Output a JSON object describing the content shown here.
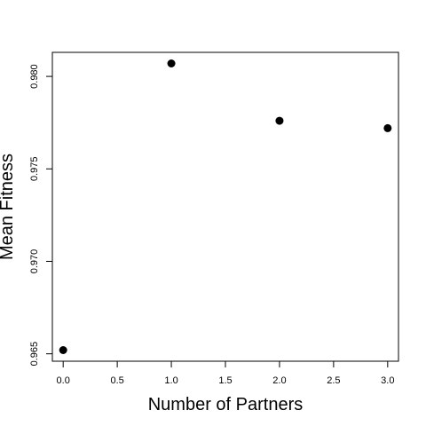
{
  "chart_data": {
    "type": "scatter",
    "xlabel": "Number of Partners",
    "ylabel": "Mean Fitness",
    "xlim": [
      -0.1,
      3.1
    ],
    "ylim": [
      0.9646,
      0.9813
    ],
    "x_ticks": [
      {
        "value": 0.0,
        "label": "0.0"
      },
      {
        "value": 0.5,
        "label": "0.5"
      },
      {
        "value": 1.0,
        "label": "1.0"
      },
      {
        "value": 1.5,
        "label": "1.5"
      },
      {
        "value": 2.0,
        "label": "2.0"
      },
      {
        "value": 2.5,
        "label": "2.5"
      },
      {
        "value": 3.0,
        "label": "3.0"
      }
    ],
    "y_ticks": [
      {
        "value": 0.965,
        "label": "0.965"
      },
      {
        "value": 0.97,
        "label": "0.970"
      },
      {
        "value": 0.975,
        "label": "0.975"
      },
      {
        "value": 0.98,
        "label": "0.980"
      }
    ],
    "points": [
      {
        "x": 0,
        "y": 0.9652
      },
      {
        "x": 1,
        "y": 0.9807
      },
      {
        "x": 2,
        "y": 0.9776
      },
      {
        "x": 3,
        "y": 0.9772
      }
    ],
    "grid": false,
    "point_color": "#000000"
  }
}
